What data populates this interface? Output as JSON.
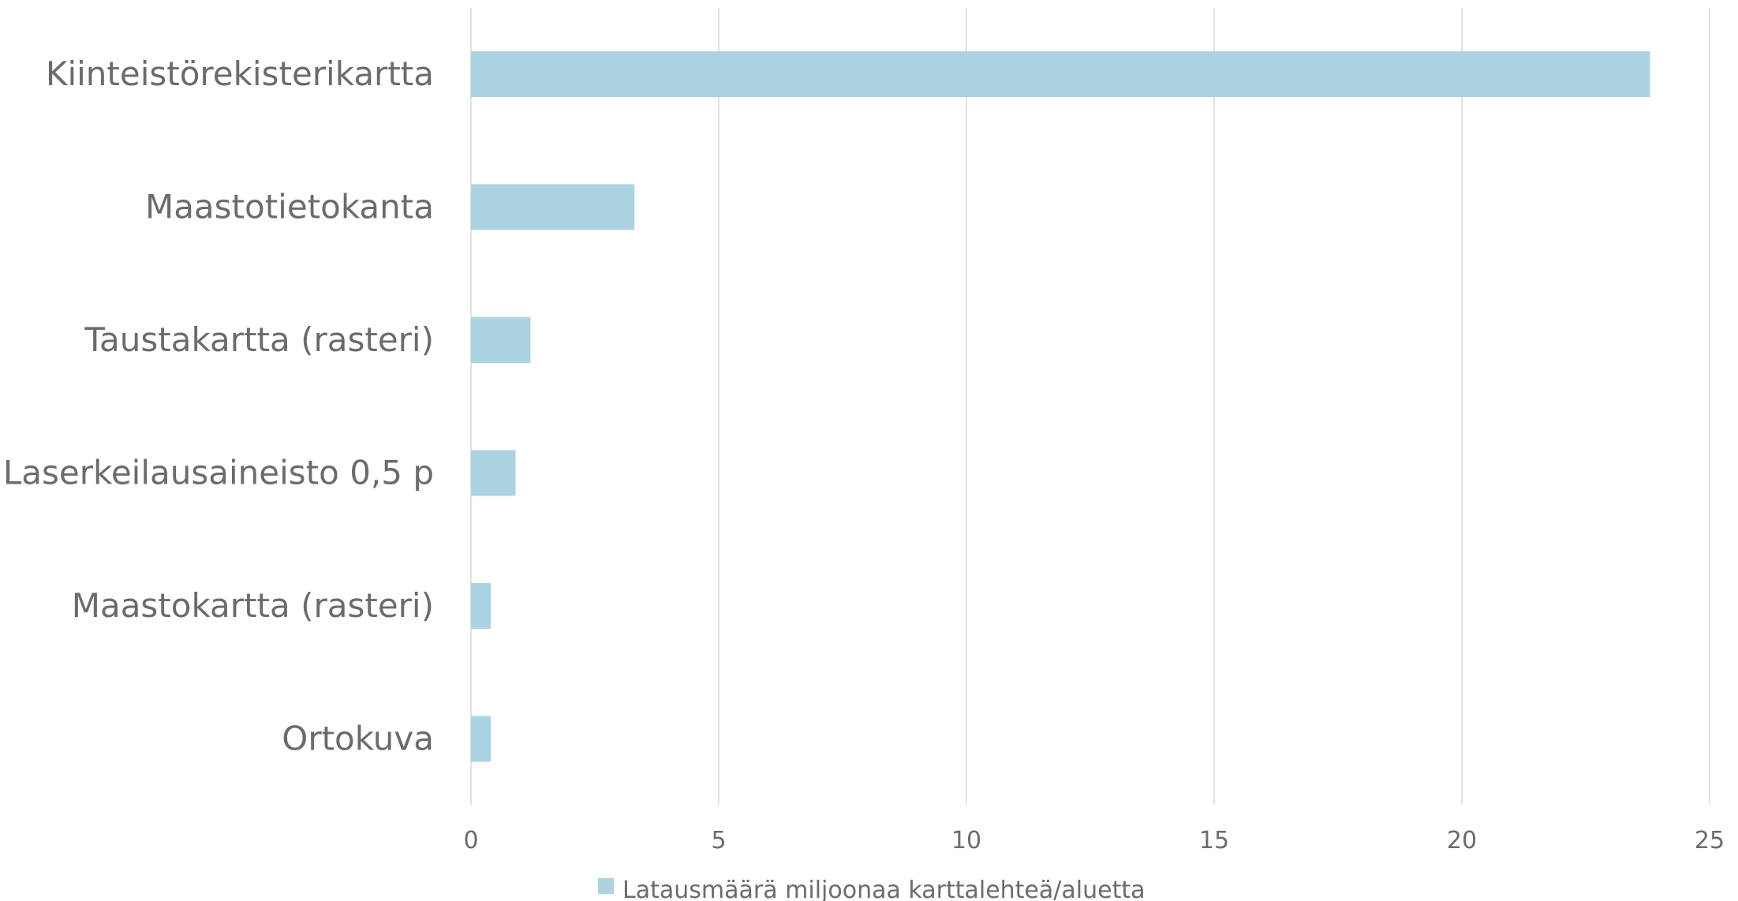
{
  "chart_data": {
    "type": "bar",
    "orientation": "horizontal",
    "categories": [
      "Kiinteistörekisterikartta",
      "Maastotietokanta",
      "Taustakartta (rasteri)",
      "Laserkeilausaineisto 0,5 p",
      "Maastokartta (rasteri)",
      "Ortokuva"
    ],
    "series": [
      {
        "name": "Latausmäärä miljoonaa karttalehteä/aluetta",
        "color": "#acd3e1",
        "values": [
          23.8,
          3.3,
          1.2,
          0.9,
          0.4,
          0.4
        ]
      }
    ],
    "xlim": [
      0,
      25
    ],
    "xticks": [
      0,
      5,
      10,
      15,
      20,
      25
    ],
    "grid": "vertical",
    "legend": "bottom-center",
    "colors": {
      "bar": "#acd3e1",
      "grid": "#d9d9d9",
      "text": "#6b6b6b"
    }
  }
}
